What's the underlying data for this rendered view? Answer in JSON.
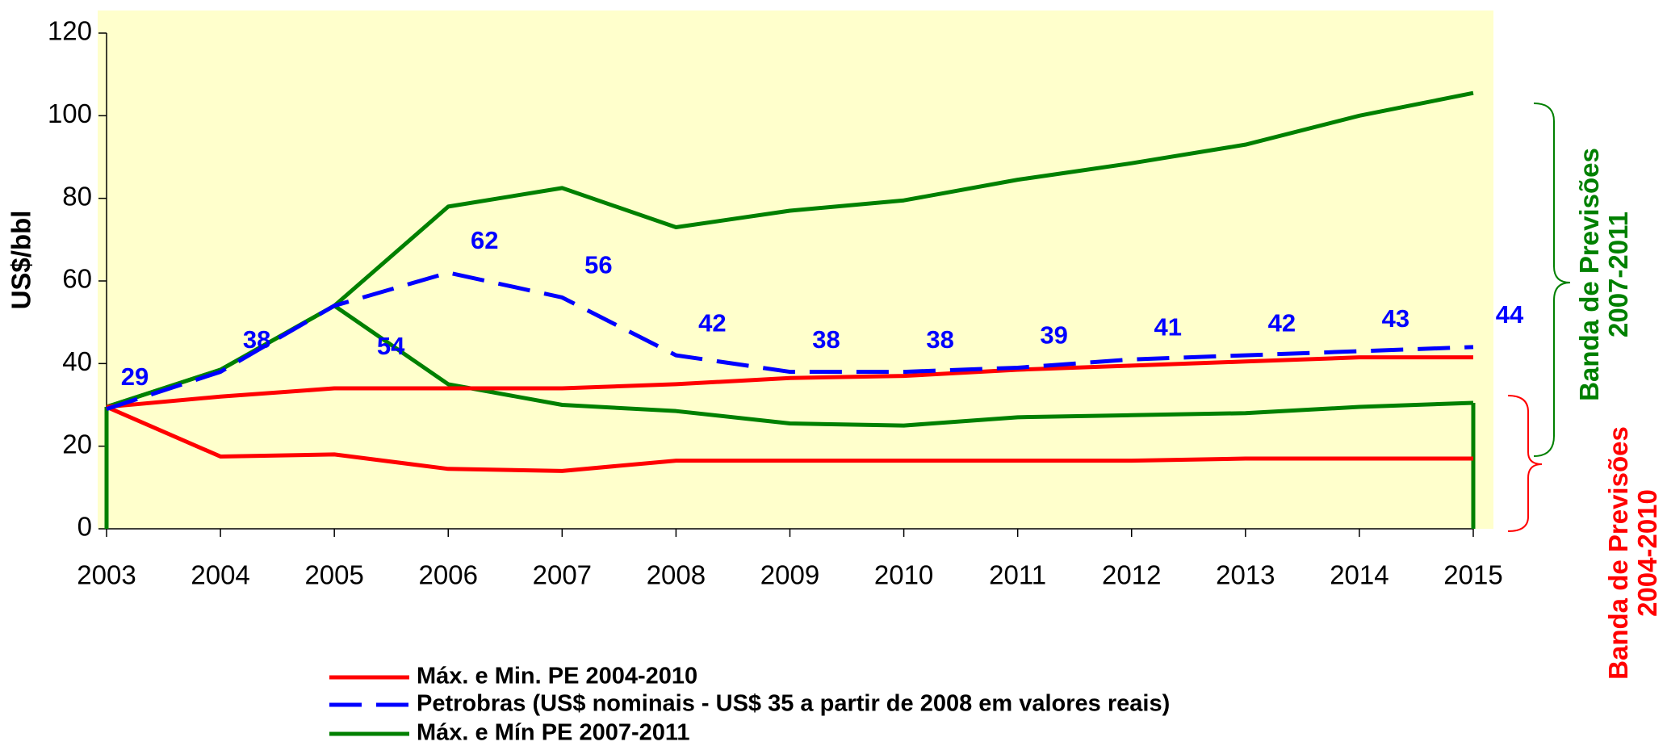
{
  "chart_data": {
    "type": "line",
    "ylabel": "US$/bbl",
    "categories": [
      "2003",
      "2004",
      "2005",
      "2006",
      "2007",
      "2008",
      "2009",
      "2010",
      "2011",
      "2012",
      "2013",
      "2014",
      "2015"
    ],
    "series": [
      {
        "name": "Máx. e Min. PE 2004-2010",
        "color": "#ff0000",
        "dash": false,
        "values": [
          [
            29.5,
            32,
            34,
            34,
            34,
            35,
            36.5,
            37,
            38.5,
            39.5,
            40.5,
            41.5,
            41.5
          ],
          [
            29.5,
            17.5,
            18,
            14.5,
            14,
            16.5,
            16.5,
            16.5,
            16.5,
            16.5,
            17,
            17,
            17
          ]
        ]
      },
      {
        "name": "Petrobras (US$ nominais - US$ 35 a partir de 2008 em valores reais)",
        "color": "#0000ff",
        "dash": true,
        "labels": true,
        "values": [
          [
            29,
            38,
            54,
            62,
            56,
            42,
            38,
            38,
            39,
            41,
            42,
            43,
            44
          ]
        ]
      },
      {
        "name": "Máx. e Mín PE 2007-2011",
        "color": "#008000",
        "dash": false,
        "values": [
          [
            29.5,
            38.5,
            54,
            78,
            82.5,
            73,
            77,
            79.5,
            84.5,
            88.5,
            93,
            100,
            105.5
          ],
          [
            29.5,
            38.5,
            54,
            35,
            30,
            28.5,
            25.5,
            25,
            27,
            27.5,
            28,
            29.5,
            30.5
          ]
        ]
      }
    ],
    "ylim": [
      0,
      120
    ],
    "yticks": [
      0,
      20,
      40,
      60,
      80,
      100,
      120
    ],
    "plot_background": "#ffffcc",
    "annotations": [
      {
        "lines": [
          "Banda de Previsões",
          "2007-2011"
        ],
        "color": "#008000"
      },
      {
        "lines": [
          "Banda de Previsões",
          "2004-2010"
        ],
        "color": "#ff0000"
      }
    ]
  }
}
